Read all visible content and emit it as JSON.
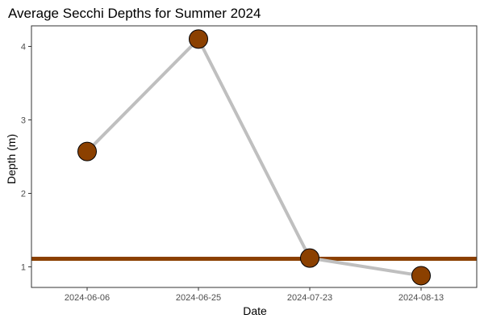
{
  "chart_data": {
    "type": "line",
    "title": "Average Secchi Depths for Summer 2024",
    "xlabel": "Date",
    "ylabel": "Depth (m)",
    "categories": [
      "2024-06-06",
      "2024-06-25",
      "2024-07-23",
      "2024-08-13"
    ],
    "series": [
      {
        "values": [
          2.57,
          4.1,
          1.12,
          0.88
        ]
      }
    ],
    "reference_line": {
      "y": 1.11
    },
    "y_ticks": [
      1,
      2,
      3,
      4
    ],
    "ylim": [
      0.72,
      4.28
    ],
    "grid": false,
    "legend": "none",
    "colors": {
      "line": "#bfbfbf",
      "point_fill": "#8b4000",
      "point_stroke": "#000000",
      "reference_line": "#8b4000",
      "panel_border": "#333333"
    }
  }
}
